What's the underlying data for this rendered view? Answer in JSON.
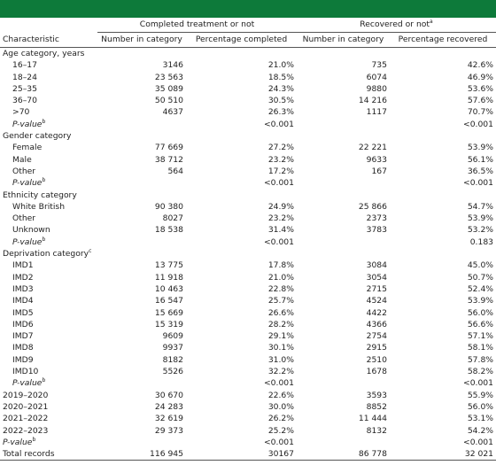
{
  "table": {
    "group_headers": [
      {
        "text": "Completed treatment or not"
      },
      {
        "text": "Recovered or not",
        "note": "a"
      }
    ],
    "columns": [
      "Characteristic",
      "Number in category",
      "Percentage completed",
      "Number in category",
      "Percentage recovered"
    ],
    "sections": [
      {
        "title": "Age category, years",
        "rows": [
          {
            "label": "16–17",
            "cells": [
              "3146",
              "21.0%",
              "735",
              "42.6%"
            ]
          },
          {
            "label": "18–24",
            "cells": [
              "23 563",
              "18.5%",
              "6074",
              "46.9%"
            ]
          },
          {
            "label": "25–35",
            "cells": [
              "35 089",
              "24.3%",
              "9880",
              "53.6%"
            ]
          },
          {
            "label": "36–70",
            "cells": [
              "50 510",
              "30.5%",
              "14 216",
              "57.6%"
            ]
          },
          {
            "label": ">70",
            "cells": [
              "4637",
              "26.3%",
              "1117",
              "70.7%"
            ]
          },
          {
            "label": "P-value",
            "note": "b",
            "cells": [
              null,
              "<0.001",
              null,
              "<0.001"
            ]
          }
        ]
      },
      {
        "title": "Gender category",
        "rows": [
          {
            "label": "Female",
            "cells": [
              "77 669",
              "27.2%",
              "22 221",
              "53.9%"
            ]
          },
          {
            "label": "Male",
            "cells": [
              "38 712",
              "23.2%",
              "9633",
              "56.1%"
            ]
          },
          {
            "label": "Other",
            "cells": [
              "564",
              "17.2%",
              "167",
              "36.5%"
            ]
          },
          {
            "label": "P-value",
            "note": "b",
            "cells": [
              null,
              "<0.001",
              null,
              "<0.001"
            ]
          }
        ]
      },
      {
        "title": "Ethnicity category",
        "rows": [
          {
            "label": "White British",
            "cells": [
              "90 380",
              "24.9%",
              "25 866",
              "54.7%"
            ]
          },
          {
            "label": "Other",
            "cells": [
              "8027",
              "23.2%",
              "2373",
              "53.9%"
            ]
          },
          {
            "label": "Unknown",
            "cells": [
              "18 538",
              "31.4%",
              "3783",
              "53.2%"
            ]
          },
          {
            "label": "P-value",
            "note": "b",
            "cells": [
              null,
              "<0.001",
              null,
              "0.183"
            ]
          }
        ]
      },
      {
        "title": "Deprivation category",
        "note": "c",
        "rows": [
          {
            "label": "IMD1",
            "cells": [
              "13 775",
              "17.8%",
              "3084",
              "45.0%"
            ]
          },
          {
            "label": "IMD2",
            "cells": [
              "11 918",
              "21.0%",
              "3054",
              "50.7%"
            ]
          },
          {
            "label": "IMD3",
            "cells": [
              "10 463",
              "22.8%",
              "2715",
              "52.4%"
            ]
          },
          {
            "label": "IMD4",
            "cells": [
              "16 547",
              "25.7%",
              "4524",
              "53.9%"
            ]
          },
          {
            "label": "IMD5",
            "cells": [
              "15 669",
              "26.6%",
              "4422",
              "56.0%"
            ]
          },
          {
            "label": "IMD6",
            "cells": [
              "15 319",
              "28.2%",
              "4366",
              "56.6%"
            ]
          },
          {
            "label": "IMD7",
            "cells": [
              "9609",
              "29.1%",
              "2754",
              "57.1%"
            ]
          },
          {
            "label": "IMD8",
            "cells": [
              "9937",
              "30.1%",
              "2915",
              "58.1%"
            ]
          },
          {
            "label": "IMD9",
            "cells": [
              "8182",
              "31.0%",
              "2510",
              "57.8%"
            ]
          },
          {
            "label": "IMD10",
            "cells": [
              "5526",
              "32.2%",
              "1678",
              "58.2%"
            ]
          },
          {
            "label": "P-value",
            "note": "b",
            "cells": [
              null,
              "<0.001",
              null,
              "<0.001"
            ]
          }
        ]
      },
      {
        "rows": [
          {
            "label": "2019–2020",
            "cells": [
              "30 670",
              "22.6%",
              "3593",
              "55.9%"
            ]
          },
          {
            "label": "2020–2021",
            "cells": [
              "24 283",
              "30.0%",
              "8852",
              "56.0%"
            ]
          },
          {
            "label": "2021–2022",
            "cells": [
              "32 619",
              "26.2%",
              "11 444",
              "53.1%"
            ]
          },
          {
            "label": "2022–2023",
            "cells": [
              "29 373",
              "25.2%",
              "8132",
              "54.2%"
            ]
          },
          {
            "label": "P-value",
            "note": "b",
            "cells": [
              null,
              "<0.001",
              null,
              "<0.001"
            ]
          }
        ]
      }
    ],
    "total": {
      "label": "Total records",
      "cells": [
        "116 945",
        "30167",
        "86 778",
        "32 021"
      ]
    }
  }
}
